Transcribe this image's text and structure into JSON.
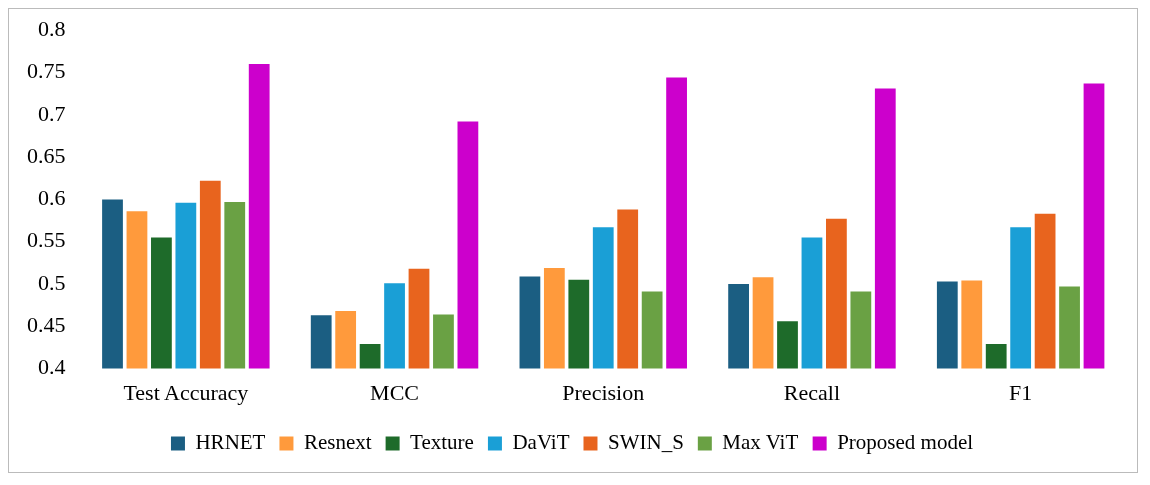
{
  "chart_data": {
    "type": "bar",
    "categories": [
      "Test Accuracy",
      "MCC",
      "Precision",
      "Recall",
      "F1"
    ],
    "series": [
      {
        "name": "HRNET",
        "color": "#1b5e82",
        "values": [
          0.6,
          0.463,
          0.509,
          0.5,
          0.503
        ]
      },
      {
        "name": "Resnext",
        "color": "#ff9a3c",
        "values": [
          0.586,
          0.468,
          0.519,
          0.508,
          0.504
        ]
      },
      {
        "name": "Texture",
        "color": "#1e6b2a",
        "values": [
          0.555,
          0.429,
          0.505,
          0.456,
          0.429
        ]
      },
      {
        "name": "DaViT",
        "color": "#1a9fd6",
        "values": [
          0.596,
          0.501,
          0.567,
          0.555,
          0.567
        ]
      },
      {
        "name": "SWIN_S",
        "color": "#e8641e",
        "values": [
          0.622,
          0.518,
          0.588,
          0.577,
          0.583
        ]
      },
      {
        "name": "Max ViT",
        "color": "#6aa144",
        "values": [
          0.597,
          0.464,
          0.491,
          0.491,
          0.497
        ]
      },
      {
        "name": "Proposed model",
        "color": "#cc00cc",
        "values": [
          0.76,
          0.692,
          0.744,
          0.731,
          0.737
        ]
      }
    ],
    "ylim": [
      0.4,
      0.8
    ],
    "yticks": [
      0.4,
      0.45,
      0.5,
      0.55,
      0.6,
      0.65,
      0.7,
      0.75,
      0.8
    ],
    "grid": false,
    "legend": "bottom"
  }
}
